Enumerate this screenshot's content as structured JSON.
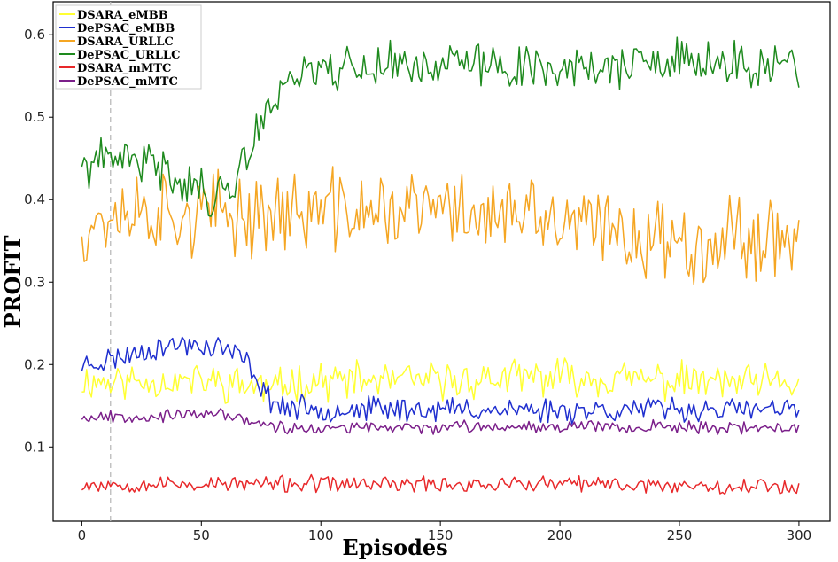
{
  "chart_data": {
    "type": "line",
    "title": "",
    "xlabel": "Episodes",
    "ylabel": "PROFIT",
    "xlim": [
      -12,
      313
    ],
    "ylim": [
      0.01,
      0.64
    ],
    "xticks": [
      0,
      50,
      100,
      150,
      200,
      250,
      300
    ],
    "yticks": [
      0.1,
      0.2,
      0.3,
      0.4,
      0.5,
      0.6
    ],
    "grid": false,
    "legend_position": "top-left",
    "vline": {
      "x": 12,
      "style": "dashed",
      "color": "#bbbbbb"
    },
    "series": [
      {
        "name": "DSARA_eMBB",
        "color": "#ffff33",
        "base": [
          [
            0,
            0.18
          ],
          [
            50,
            0.18
          ],
          [
            70,
            0.175
          ],
          [
            80,
            0.17
          ],
          [
            90,
            0.18
          ],
          [
            120,
            0.18
          ],
          [
            150,
            0.18
          ],
          [
            200,
            0.185
          ],
          [
            250,
            0.18
          ],
          [
            300,
            0.175
          ]
        ],
        "noise": 0.018,
        "seed": 11
      },
      {
        "name": "DePSAC_eMBB",
        "color": "#1f2fcf",
        "base": [
          [
            0,
            0.2
          ],
          [
            10,
            0.205
          ],
          [
            30,
            0.22
          ],
          [
            45,
            0.225
          ],
          [
            60,
            0.22
          ],
          [
            70,
            0.2
          ],
          [
            78,
            0.16
          ],
          [
            85,
            0.148
          ],
          [
            100,
            0.146
          ],
          [
            150,
            0.146
          ],
          [
            200,
            0.145
          ],
          [
            250,
            0.146
          ],
          [
            300,
            0.144
          ]
        ],
        "noise": 0.012,
        "seed": 23
      },
      {
        "name": "DSARA_URLLC",
        "color": "#f5a623",
        "base": [
          [
            0,
            0.37
          ],
          [
            20,
            0.39
          ],
          [
            50,
            0.38
          ],
          [
            80,
            0.385
          ],
          [
            120,
            0.385
          ],
          [
            150,
            0.39
          ],
          [
            200,
            0.37
          ],
          [
            250,
            0.35
          ],
          [
            300,
            0.36
          ]
        ],
        "noise": 0.04,
        "seed": 37
      },
      {
        "name": "DePSAC_URLLC",
        "color": "#1e8a1e",
        "base": [
          [
            0,
            0.44
          ],
          [
            20,
            0.45
          ],
          [
            40,
            0.43
          ],
          [
            55,
            0.4
          ],
          [
            60,
            0.41
          ],
          [
            70,
            0.46
          ],
          [
            80,
            0.52
          ],
          [
            85,
            0.55
          ],
          [
            100,
            0.56
          ],
          [
            150,
            0.565
          ],
          [
            200,
            0.56
          ],
          [
            250,
            0.565
          ],
          [
            300,
            0.56
          ]
        ],
        "noise": 0.022,
        "seed": 41
      },
      {
        "name": "DSARA_mMTC",
        "color": "#e8282a",
        "base": [
          [
            0,
            0.055
          ],
          [
            100,
            0.055
          ],
          [
            200,
            0.055
          ],
          [
            300,
            0.052
          ]
        ],
        "noise": 0.008,
        "seed": 53
      },
      {
        "name": "DePSAC_mMTC",
        "color": "#7b1f8a",
        "base": [
          [
            0,
            0.137
          ],
          [
            40,
            0.138
          ],
          [
            60,
            0.14
          ],
          [
            75,
            0.128
          ],
          [
            85,
            0.122
          ],
          [
            150,
            0.124
          ],
          [
            200,
            0.126
          ],
          [
            250,
            0.124
          ],
          [
            300,
            0.122
          ]
        ],
        "noise": 0.006,
        "seed": 67
      }
    ]
  }
}
